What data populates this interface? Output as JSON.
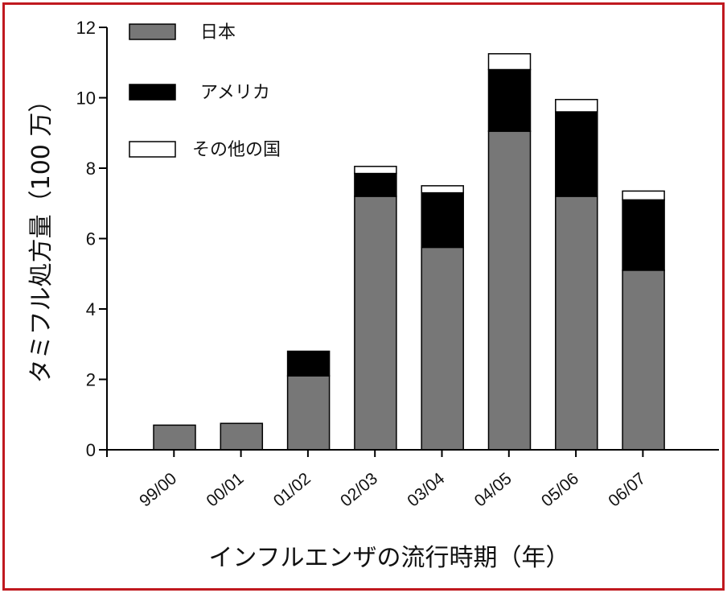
{
  "chart_data": {
    "type": "bar",
    "stacked": true,
    "categories": [
      "99/00",
      "00/01",
      "01/02",
      "02/03",
      "03/04",
      "04/05",
      "05/06",
      "06/07"
    ],
    "series": [
      {
        "name": "日本",
        "color": "#777777",
        "values": [
          0.7,
          0.75,
          2.1,
          7.2,
          5.75,
          9.05,
          7.2,
          5.1
        ]
      },
      {
        "name": "アメリカ",
        "color": "#000000",
        "values": [
          0,
          0,
          0.7,
          0.65,
          1.55,
          1.75,
          2.4,
          2.0
        ]
      },
      {
        "name": "その他の国",
        "color": "#ffffff",
        "values": [
          0,
          0,
          0,
          0.2,
          0.2,
          0.45,
          0.35,
          0.25
        ]
      }
    ],
    "ylabel": "タミフル処方量（100 万）",
    "xlabel": "インフルエンザの流行時期（年）",
    "ylim": [
      0,
      12
    ],
    "yticks": [
      0,
      2,
      4,
      6,
      8,
      10,
      12
    ],
    "grid": false,
    "legend_position": "top-left"
  }
}
